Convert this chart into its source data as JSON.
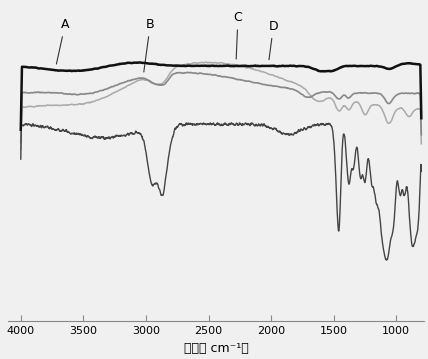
{
  "xlabel": "波数（ cm⁻¹）",
  "xmin": 4000,
  "xmax": 800,
  "labels": [
    "A",
    "B",
    "C",
    "D"
  ],
  "colors_plot": {
    "A": "#111111",
    "B": "#888888",
    "C": "#aaaaaa",
    "D": "#444444"
  },
  "background": "#f0f0f0",
  "figsize": [
    4.28,
    3.59
  ],
  "dpi": 100
}
